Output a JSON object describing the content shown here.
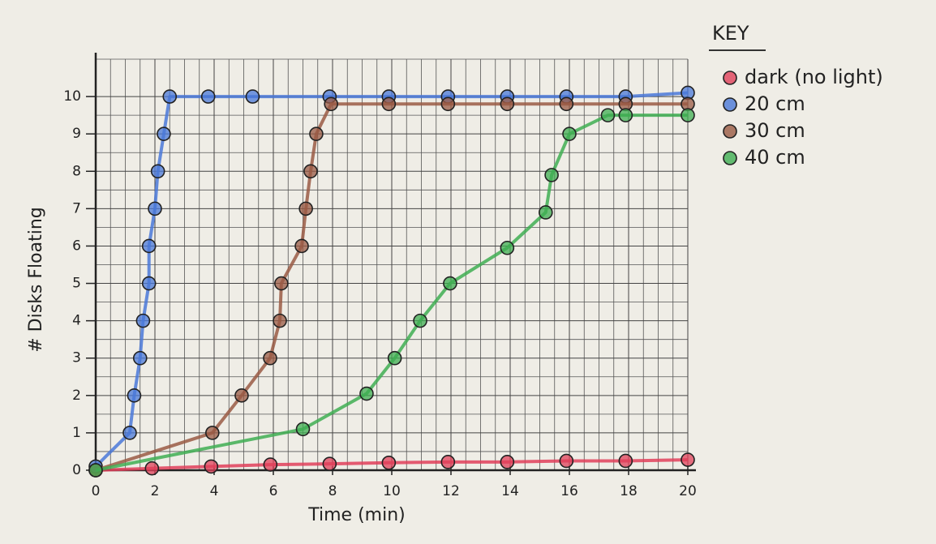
{
  "chart_data": {
    "type": "line",
    "x_label": "Time (min)",
    "y_label": "# Disks Floating",
    "legend_title": "KEY",
    "legend": "top-right",
    "grid": true,
    "xlim": [
      0,
      20
    ],
    "xticks": [
      0,
      2,
      4,
      6,
      8,
      10,
      12,
      14,
      16,
      18,
      20
    ],
    "ylim": [
      0,
      11
    ],
    "yticks": [
      0,
      1,
      2,
      3,
      4,
      5,
      6,
      7,
      8,
      9,
      10
    ],
    "series": [
      {
        "name": "dark (no light)",
        "color": "#e0405a",
        "x": [
          0,
          1.9,
          3.9,
          5.9,
          7.9,
          9.9,
          11.9,
          13.9,
          15.9,
          17.9,
          20
        ],
        "values": [
          0,
          0.05,
          0.1,
          0.15,
          0.17,
          0.2,
          0.22,
          0.22,
          0.25,
          0.25,
          0.28
        ]
      },
      {
        "name": "20 cm",
        "color": "#4a78d8",
        "x": [
          0,
          1.15,
          1.3,
          1.5,
          1.6,
          1.8,
          1.8,
          2.0,
          2.1,
          2.3,
          2.5,
          3.8,
          5.3,
          7.9,
          9.9,
          11.9,
          13.9,
          15.9,
          17.9,
          20
        ],
        "values": [
          0.1,
          1,
          2,
          3,
          4,
          5,
          6,
          7,
          8,
          9,
          10,
          10,
          10,
          10,
          10,
          10,
          10,
          10,
          10,
          10.1
        ]
      },
      {
        "name": "30 cm",
        "color": "#9a5a44",
        "x": [
          0,
          3.94,
          4.93,
          5.89,
          6.22,
          6.27,
          6.96,
          7.1,
          7.26,
          7.45,
          7.95,
          9.9,
          11.9,
          13.9,
          15.9,
          17.9,
          20
        ],
        "values": [
          0,
          1,
          2,
          3,
          4,
          5,
          6,
          7,
          8,
          9,
          9.8,
          9.8,
          9.8,
          9.8,
          9.8,
          9.8,
          9.8
        ]
      },
      {
        "name": "40 cm",
        "color": "#3fae52",
        "x": [
          0,
          7.0,
          9.15,
          10.1,
          10.96,
          11.97,
          13.9,
          15.2,
          15.4,
          16.0,
          17.3,
          17.9,
          20
        ],
        "values": [
          0,
          1.1,
          2.05,
          3,
          4,
          5,
          5.95,
          6.9,
          7.9,
          9,
          9.5,
          9.5,
          9.5
        ]
      }
    ]
  }
}
